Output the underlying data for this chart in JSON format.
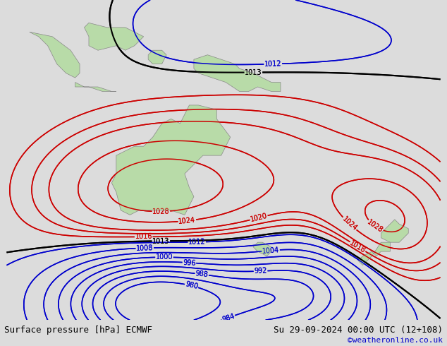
{
  "title_left": "Surface pressure [hPa] ECMWF",
  "title_right": "Su 29-09-2024 00:00 UTC (12+108)",
  "copyright": "©weatheronline.co.uk",
  "bg_color": "#cdd5e0",
  "land_color": "#b8dba8",
  "border_color": "#888888",
  "red_isobar_color": "#cc0000",
  "blue_isobar_color": "#0000cc",
  "black_isobar_color": "#000000",
  "label_fontsize": 7,
  "footer_fontsize": 9,
  "copyright_fontsize": 8,
  "copyright_color": "#0000cc",
  "footer_bg": "#dcdcdc",
  "lon_min": 90,
  "lon_max": 185,
  "lat_min": -58,
  "lat_max": 12
}
